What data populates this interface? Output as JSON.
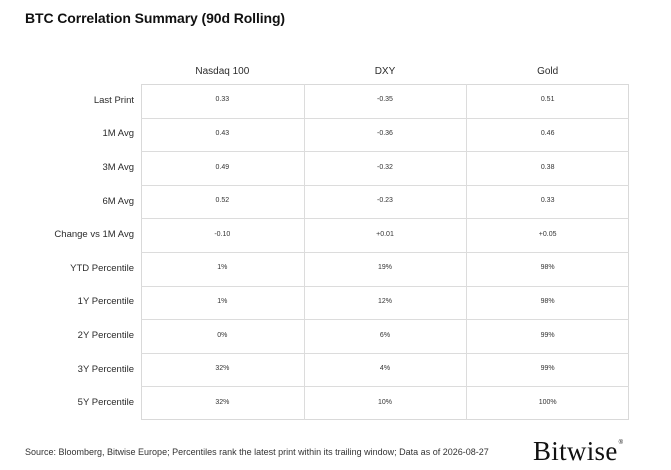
{
  "chart_data": {
    "type": "table",
    "title": "BTC Correlation Summary (90d Rolling)",
    "columns": [
      "Nasdaq 100",
      "DXY",
      "Gold"
    ],
    "rows": [
      {
        "label": "Last Print",
        "values": [
          "0.33",
          "-0.35",
          "0.51"
        ]
      },
      {
        "label": "1M Avg",
        "values": [
          "0.43",
          "-0.36",
          "0.46"
        ]
      },
      {
        "label": "3M Avg",
        "values": [
          "0.49",
          "-0.32",
          "0.38"
        ]
      },
      {
        "label": "6M Avg",
        "values": [
          "0.52",
          "-0.23",
          "0.33"
        ]
      },
      {
        "label": "Change vs 1M Avg",
        "values": [
          "-0.10",
          "+0.01",
          "+0.05"
        ]
      },
      {
        "label": "YTD Percentile",
        "values": [
          "1%",
          "19%",
          "98%"
        ]
      },
      {
        "label": "1Y Percentile",
        "values": [
          "1%",
          "12%",
          "98%"
        ]
      },
      {
        "label": "2Y Percentile",
        "values": [
          "0%",
          "6%",
          "99%"
        ]
      },
      {
        "label": "3Y Percentile",
        "values": [
          "32%",
          "4%",
          "99%"
        ]
      },
      {
        "label": "5Y Percentile",
        "values": [
          "32%",
          "10%",
          "100%"
        ]
      }
    ],
    "grid": true
  },
  "footnote": "Source: Bloomberg, Bitwise Europe; Percentiles rank the latest print within its trailing window; Data as of 2026-08-27",
  "brand": {
    "name": "Bitwise",
    "mark": "®"
  }
}
